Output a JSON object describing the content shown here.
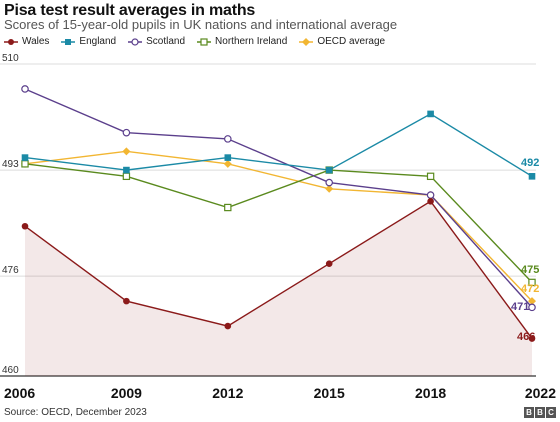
{
  "title": "Pisa test result  averages in maths",
  "subtitle": "Scores of 15-year-old pupils in UK nations and international average",
  "source": "Source: OECD, December 2023",
  "logo_text": "BBC",
  "chart_data": {
    "type": "line",
    "x": [
      "2006",
      "2009",
      "2012",
      "2015",
      "2018",
      "2022"
    ],
    "ylim": [
      460,
      510
    ],
    "yticks": [
      460,
      476,
      493,
      510
    ],
    "grid": true,
    "legend": "top-left",
    "series": [
      {
        "name": "Wales",
        "color": "#8b1a1a",
        "marker": "circle-filled",
        "values": [
          484,
          472,
          468,
          478,
          488,
          466
        ],
        "end_label": "466",
        "fill": true
      },
      {
        "name": "England",
        "color": "#1b8aa6",
        "marker": "square-filled",
        "values": [
          495,
          493,
          495,
          493,
          502,
          492
        ],
        "end_label": "492"
      },
      {
        "name": "Scotland",
        "color": "#5b3f8c",
        "marker": "circle-open",
        "values": [
          506,
          499,
          498,
          491,
          489,
          471
        ],
        "end_label": "471"
      },
      {
        "name": "Northern Ireland",
        "color": "#5a8a1e",
        "marker": "square-open",
        "values": [
          494,
          492,
          487,
          493,
          492,
          475
        ],
        "end_label": "475"
      },
      {
        "name": "OECD average",
        "color": "#f2b632",
        "marker": "diamond-filled",
        "values": [
          494,
          496,
          494,
          490,
          489,
          472
        ],
        "end_label": "472"
      }
    ]
  }
}
